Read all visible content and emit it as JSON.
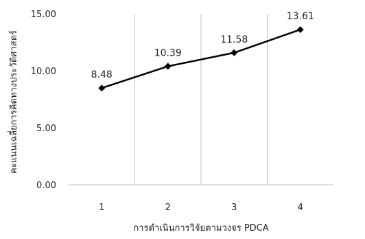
{
  "chart_data": {
    "type": "line",
    "categories": [
      "1",
      "2",
      "3",
      "4"
    ],
    "series": [
      {
        "values": [
          8.48,
          10.39,
          11.58,
          13.61
        ],
        "labels": [
          "8.48",
          "10.39",
          "11.58",
          "13.61"
        ]
      }
    ],
    "ylim": [
      0,
      15
    ],
    "yticks": [
      "0.00",
      "5.00",
      "10.00",
      "15.00"
    ],
    "xlabel": "การดำเนินการวิจัยตามวงจร PDCA",
    "ylabel": "คะแนนเฉลี่ยการคิดทางประวัติศาสตร์",
    "grid": "vertical",
    "line_color": "#000000",
    "marker": "diamond"
  }
}
